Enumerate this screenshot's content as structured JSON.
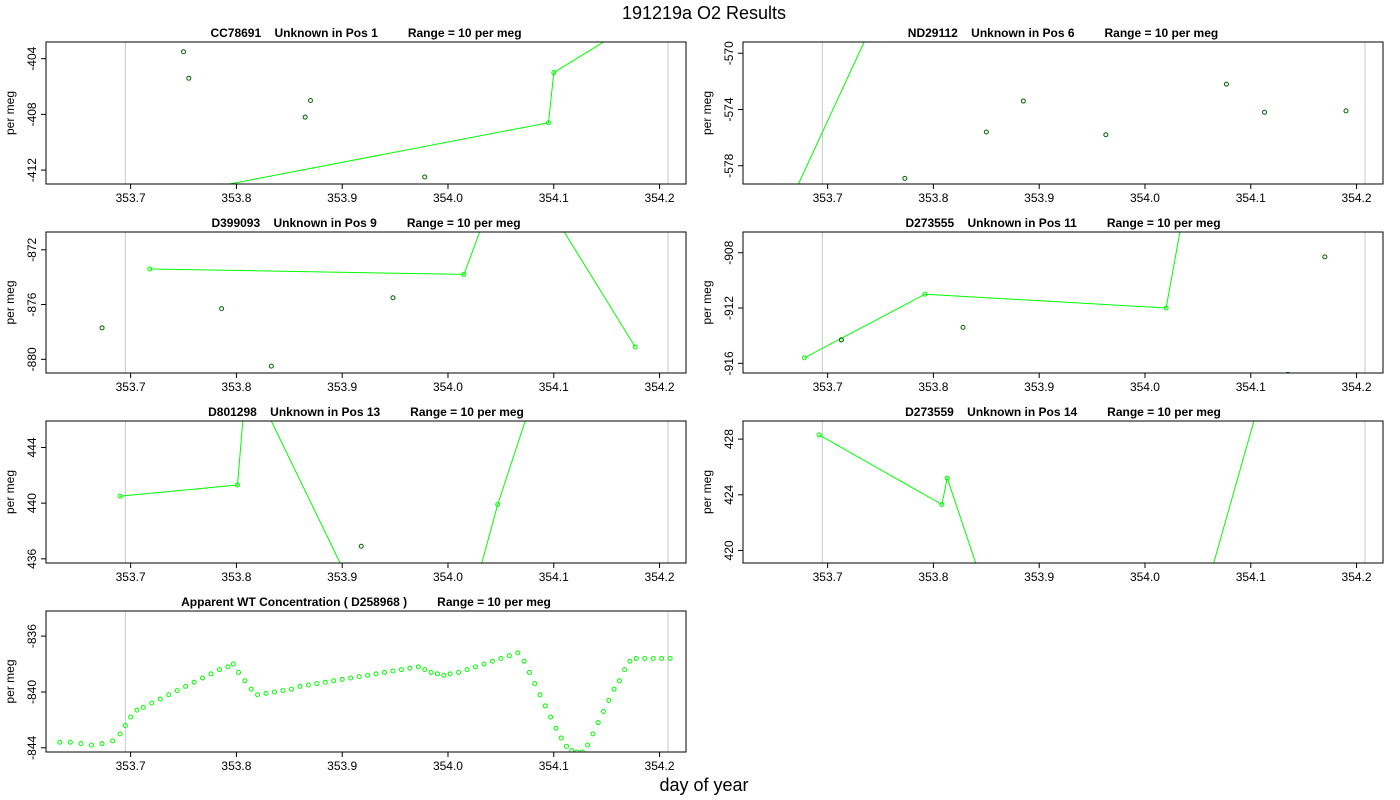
{
  "page_title": "191219a  O2 Results",
  "x_axis_label": "day of year",
  "colors": {
    "line": "#00ff00",
    "marker_dark": "#006400",
    "marker_light": "#00ff00",
    "frame": "#000000",
    "vline": "#c8c8c8"
  },
  "chart_data": [
    {
      "type": "scatter",
      "title": "CC78691    Unknown in Pos 1         Range = 10 per meg",
      "ylabel": "per meg",
      "xlim": [
        353.62,
        354.225
      ],
      "ylim": [
        -413,
        -402.8
      ],
      "xticks": [
        353.7,
        353.8,
        353.9,
        354.0,
        354.1,
        354.2
      ],
      "xtick_labels": [
        "353.7",
        "353.8",
        "353.9",
        "354.0",
        "354.1",
        "354.2"
      ],
      "yticks": [
        -404,
        -408,
        -412
      ],
      "ytick_labels": [
        "-404",
        "-408",
        "-412"
      ],
      "vlines": [
        353.695,
        354.208
      ],
      "points": [
        [
          353.75,
          -403.5
        ],
        [
          353.755,
          -405.4
        ],
        [
          353.865,
          -408.2
        ],
        [
          353.87,
          -407.0
        ],
        [
          353.978,
          -412.5
        ]
      ],
      "line": [
        [
          353.67,
          -414.8
        ],
        [
          354.095,
          -408.6
        ],
        [
          354.1,
          -405.0
        ],
        [
          354.16,
          -402.2
        ]
      ],
      "line_markers": [
        [
          354.095,
          -408.6
        ],
        [
          354.1,
          -405.0
        ]
      ]
    },
    {
      "type": "scatter",
      "title": "ND29112    Unknown in Pos 6         Range = 10 per meg",
      "ylabel": "per meg",
      "xlim": [
        353.62,
        354.225
      ],
      "ylim": [
        -579.3,
        -569.2
      ],
      "xticks": [
        353.7,
        353.8,
        353.9,
        354.0,
        354.1,
        354.2
      ],
      "xtick_labels": [
        "353.7",
        "353.8",
        "353.9",
        "354.0",
        "354.1",
        "354.2"
      ],
      "yticks": [
        -570,
        -574,
        -578
      ],
      "ytick_labels": [
        "-570",
        "-574",
        "-578"
      ],
      "vlines": [
        353.695,
        354.208
      ],
      "points": [
        [
          353.773,
          -578.9
        ],
        [
          353.85,
          -575.6
        ],
        [
          353.885,
          -573.4
        ],
        [
          353.963,
          -575.8
        ],
        [
          354.077,
          -572.2
        ],
        [
          354.113,
          -574.2
        ],
        [
          354.19,
          -574.1
        ]
      ],
      "line": [
        [
          353.665,
          -580.5
        ],
        [
          353.745,
          -567.5
        ]
      ],
      "line_markers": []
    },
    {
      "type": "scatter",
      "title": "D399093    Unknown in Pos 9         Range = 10 per meg",
      "ylabel": "per meg",
      "xlim": [
        353.62,
        354.225
      ],
      "ylim": [
        -881,
        -870.7
      ],
      "xticks": [
        353.7,
        353.8,
        353.9,
        354.0,
        354.1,
        354.2
      ],
      "xtick_labels": [
        "353.7",
        "353.8",
        "353.9",
        "354.0",
        "354.1",
        "354.2"
      ],
      "yticks": [
        -872,
        -876,
        -880
      ],
      "ytick_labels": [
        "-872",
        "-876",
        "-880"
      ],
      "vlines": [
        353.695,
        354.208
      ],
      "points": [
        [
          353.673,
          -877.7
        ],
        [
          353.786,
          -876.3
        ],
        [
          353.833,
          -880.5
        ],
        [
          353.948,
          -875.5
        ]
      ],
      "line": [
        [
          353.718,
          -873.4
        ],
        [
          354.015,
          -873.8
        ],
        [
          354.03,
          -870.7
        ],
        [
          354.11,
          -870.7
        ],
        [
          354.177,
          -879.1
        ]
      ],
      "line_markers": [
        [
          353.718,
          -873.4
        ],
        [
          354.015,
          -873.8
        ],
        [
          354.177,
          -879.1
        ]
      ]
    },
    {
      "type": "scatter",
      "title": "D273555    Unknown in Pos 11         Range = 10 per meg",
      "ylabel": "per meg",
      "xlim": [
        353.62,
        354.225
      ],
      "ylim": [
        -916.7,
        -906.5
      ],
      "xticks": [
        353.7,
        353.8,
        353.9,
        354.0,
        354.1,
        354.2
      ],
      "xtick_labels": [
        "353.7",
        "353.8",
        "353.9",
        "354.0",
        "354.1",
        "354.2"
      ],
      "yticks": [
        -908,
        -912,
        -916
      ],
      "ytick_labels": [
        "-908",
        "-912",
        "-916"
      ],
      "vlines": [
        353.695,
        354.208
      ],
      "points": [
        [
          353.713,
          -914.3
        ],
        [
          353.828,
          -913.4
        ],
        [
          354.17,
          -908.3
        ],
        [
          354.135,
          -916.8
        ]
      ],
      "line": [
        [
          353.678,
          -915.6
        ],
        [
          353.792,
          -911.0
        ],
        [
          354.02,
          -912.0
        ],
        [
          354.033,
          -906.5
        ]
      ],
      "line_markers": [
        [
          353.678,
          -915.6
        ],
        [
          353.713,
          -914.3
        ],
        [
          353.792,
          -911.0
        ],
        [
          354.02,
          -912.0
        ]
      ]
    },
    {
      "type": "scatter",
      "title": "D801298    Unknown in Pos 13         Range = 10 per meg",
      "ylabel": "per meg",
      "xlim": [
        353.62,
        354.225
      ],
      "ylim": [
        435.7,
        445.9
      ],
      "xticks": [
        353.7,
        353.8,
        353.9,
        354.0,
        354.1,
        354.2
      ],
      "xtick_labels": [
        "353.7",
        "353.8",
        "353.9",
        "354.0",
        "354.1",
        "354.2"
      ],
      "yticks": [
        444,
        440,
        436
      ],
      "ytick_labels": [
        "444",
        "440",
        "436"
      ],
      "vlines": [
        353.695,
        354.208
      ],
      "points": [
        [
          353.918,
          436.9
        ]
      ],
      "line": [
        [
          353.69,
          440.5
        ],
        [
          353.801,
          441.3
        ],
        [
          353.806,
          445.9
        ],
        [
          353.833,
          445.9
        ],
        [
          353.898,
          435.7
        ],
        [
          354.032,
          435.7
        ],
        [
          354.047,
          439.9
        ],
        [
          354.073,
          445.9
        ]
      ],
      "line_markers": [
        [
          353.69,
          440.5
        ],
        [
          353.801,
          441.3
        ],
        [
          354.047,
          439.9
        ]
      ]
    },
    {
      "type": "scatter",
      "title": "D273559    Unknown in Pos 14         Range = 10 per meg",
      "ylabel": "per meg",
      "xlim": [
        353.62,
        354.225
      ],
      "ylim": [
        419.1,
        429.3
      ],
      "xticks": [
        353.7,
        353.8,
        353.9,
        354.0,
        354.1,
        354.2
      ],
      "xtick_labels": [
        "353.7",
        "353.8",
        "353.9",
        "354.0",
        "354.1",
        "354.2"
      ],
      "yticks": [
        428,
        424,
        420
      ],
      "ytick_labels": [
        "428",
        "424",
        "420"
      ],
      "vlines": [
        353.695,
        354.208
      ],
      "points": [],
      "line": [
        [
          353.692,
          428.3
        ],
        [
          353.808,
          423.3
        ],
        [
          353.813,
          425.2
        ],
        [
          353.84,
          419.1
        ],
        [
          354.065,
          419.1
        ],
        [
          354.103,
          429.3
        ]
      ],
      "line_markers": [
        [
          353.692,
          428.3
        ],
        [
          353.808,
          423.3
        ],
        [
          353.813,
          425.2
        ]
      ]
    },
    {
      "type": "scatter",
      "title": "Apparent WT Concentration ( D258968 )         Range = 10 per meg",
      "ylabel": "per meg",
      "xlim": [
        353.62,
        354.225
      ],
      "ylim": [
        -844.3,
        -834.2
      ],
      "xticks": [
        353.7,
        353.8,
        353.9,
        354.0,
        354.1,
        354.2
      ],
      "xtick_labels": [
        "353.7",
        "353.8",
        "353.9",
        "354.0",
        "354.1",
        "354.2"
      ],
      "yticks": [
        -836,
        -840,
        -844
      ],
      "ytick_labels": [
        "-836",
        "-840",
        "-844"
      ],
      "vlines": [
        353.695,
        354.208
      ],
      "points": [],
      "line": [],
      "series_points": [
        [
          353.633,
          -843.6
        ],
        [
          353.643,
          -843.6
        ],
        [
          353.653,
          -843.7
        ],
        [
          353.663,
          -843.8
        ],
        [
          353.673,
          -843.7
        ],
        [
          353.683,
          -843.5
        ],
        [
          353.69,
          -843.0
        ],
        [
          353.695,
          -842.4
        ],
        [
          353.7,
          -841.8
        ],
        [
          353.706,
          -841.3
        ],
        [
          353.712,
          -841.1
        ],
        [
          353.72,
          -840.8
        ],
        [
          353.728,
          -840.5
        ],
        [
          353.736,
          -840.2
        ],
        [
          353.744,
          -839.9
        ],
        [
          353.752,
          -839.6
        ],
        [
          353.76,
          -839.3
        ],
        [
          353.768,
          -839.0
        ],
        [
          353.776,
          -838.7
        ],
        [
          353.784,
          -838.4
        ],
        [
          353.792,
          -838.2
        ],
        [
          353.797,
          -838.0
        ],
        [
          353.802,
          -838.6
        ],
        [
          353.808,
          -839.2
        ],
        [
          353.814,
          -839.8
        ],
        [
          353.82,
          -840.2
        ],
        [
          353.828,
          -840.1
        ],
        [
          353.836,
          -840.0
        ],
        [
          353.844,
          -839.9
        ],
        [
          353.852,
          -839.8
        ],
        [
          353.86,
          -839.6
        ],
        [
          353.868,
          -839.5
        ],
        [
          353.876,
          -839.4
        ],
        [
          353.884,
          -839.3
        ],
        [
          353.892,
          -839.2
        ],
        [
          353.9,
          -839.1
        ],
        [
          353.908,
          -839.0
        ],
        [
          353.916,
          -838.9
        ],
        [
          353.924,
          -838.8
        ],
        [
          353.932,
          -838.7
        ],
        [
          353.94,
          -838.6
        ],
        [
          353.948,
          -838.5
        ],
        [
          353.956,
          -838.4
        ],
        [
          353.964,
          -838.3
        ],
        [
          353.972,
          -838.2
        ],
        [
          353.978,
          -838.4
        ],
        [
          353.984,
          -838.6
        ],
        [
          353.99,
          -838.7
        ],
        [
          353.996,
          -838.8
        ],
        [
          354.002,
          -838.7
        ],
        [
          354.01,
          -838.6
        ],
        [
          354.018,
          -838.4
        ],
        [
          354.026,
          -838.2
        ],
        [
          354.034,
          -838.0
        ],
        [
          354.042,
          -837.8
        ],
        [
          354.05,
          -837.6
        ],
        [
          354.058,
          -837.4
        ],
        [
          354.066,
          -837.2
        ],
        [
          354.072,
          -837.8
        ],
        [
          354.077,
          -838.6
        ],
        [
          354.082,
          -839.4
        ],
        [
          354.087,
          -840.2
        ],
        [
          354.092,
          -841.0
        ],
        [
          354.097,
          -841.8
        ],
        [
          354.102,
          -842.6
        ],
        [
          354.107,
          -843.3
        ],
        [
          354.112,
          -843.9
        ],
        [
          354.117,
          -844.2
        ],
        [
          354.122,
          -844.3
        ],
        [
          354.127,
          -844.3
        ],
        [
          354.132,
          -843.8
        ],
        [
          354.137,
          -843.0
        ],
        [
          354.142,
          -842.2
        ],
        [
          354.147,
          -841.4
        ],
        [
          354.152,
          -840.6
        ],
        [
          354.157,
          -839.8
        ],
        [
          354.162,
          -839.2
        ],
        [
          354.167,
          -838.4
        ],
        [
          354.172,
          -837.8
        ],
        [
          354.178,
          -837.6
        ],
        [
          354.186,
          -837.6
        ],
        [
          354.194,
          -837.6
        ],
        [
          354.202,
          -837.6
        ],
        [
          354.21,
          -837.6
        ]
      ]
    }
  ]
}
